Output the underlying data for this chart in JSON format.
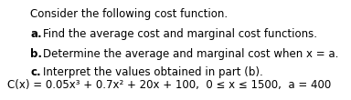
{
  "title": "Consider the following cost function.",
  "line_a": "Find the average cost and marginal cost functions.",
  "line_b": "Determine the average and marginal cost when x = a.",
  "line_c": "Interpret the values obtained in part (b).",
  "formula": "C(x) = 0.05x³ + 0.7x² + 20x + 100,  0 ≤ x ≤ 1500,  a = 400",
  "background_color": "#ffffff",
  "text_color": "#000000",
  "title_fontsize": 8.5,
  "body_fontsize": 8.5,
  "formula_fontsize": 8.5
}
